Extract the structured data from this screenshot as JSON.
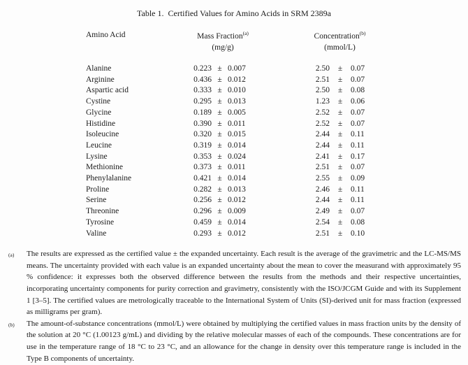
{
  "title": "Table 1.  Certified Values for Amino Acids in SRM 2389a",
  "table": {
    "header": {
      "amino_acid": "Amino Acid",
      "mass_fraction_label": "Mass Fraction",
      "mass_fraction_sup": "(a)",
      "mass_fraction_unit": "(mg/g)",
      "concentration_label": "Concentration",
      "concentration_sup": "(b)",
      "concentration_unit": "(mmol/L)"
    },
    "pm_symbol": "±",
    "rows": [
      {
        "name": "Alanine",
        "mf": "0.223",
        "mf_unc": "0.007",
        "conc": "2.50",
        "conc_unc": "0.07"
      },
      {
        "name": "Arginine",
        "mf": "0.436",
        "mf_unc": "0.012",
        "conc": "2.51",
        "conc_unc": "0.07"
      },
      {
        "name": "Aspartic acid",
        "mf": "0.333",
        "mf_unc": "0.010",
        "conc": "2.50",
        "conc_unc": "0.08"
      },
      {
        "name": "Cystine",
        "mf": "0.295",
        "mf_unc": "0.013",
        "conc": "1.23",
        "conc_unc": "0.06"
      },
      {
        "name": "Glycine",
        "mf": "0.189",
        "mf_unc": "0.005",
        "conc": "2.52",
        "conc_unc": "0.07"
      },
      {
        "name": "Histidine",
        "mf": "0.390",
        "mf_unc": "0.011",
        "conc": "2.52",
        "conc_unc": "0.07"
      },
      {
        "name": "Isoleucine",
        "mf": "0.320",
        "mf_unc": "0.015",
        "conc": "2.44",
        "conc_unc": "0.11"
      },
      {
        "name": "Leucine",
        "mf": "0.319",
        "mf_unc": "0.014",
        "conc": "2.44",
        "conc_unc": "0.11"
      },
      {
        "name": "Lysine",
        "mf": "0.353",
        "mf_unc": "0.024",
        "conc": "2.41",
        "conc_unc": "0.17"
      },
      {
        "name": "Methionine",
        "mf": "0.373",
        "mf_unc": "0.011",
        "conc": "2.51",
        "conc_unc": "0.07"
      },
      {
        "name": "Phenylalanine",
        "mf": "0.421",
        "mf_unc": "0.014",
        "conc": "2.55",
        "conc_unc": "0.09"
      },
      {
        "name": "Proline",
        "mf": "0.282",
        "mf_unc": "0.013",
        "conc": "2.46",
        "conc_unc": "0.11"
      },
      {
        "name": "Serine",
        "mf": "0.256",
        "mf_unc": "0.012",
        "conc": "2.44",
        "conc_unc": "0.11"
      },
      {
        "name": "Threonine",
        "mf": "0.296",
        "mf_unc": "0.009",
        "conc": "2.49",
        "conc_unc": "0.07"
      },
      {
        "name": "Tyrosine",
        "mf": "0.459",
        "mf_unc": "0.014",
        "conc": "2.54",
        "conc_unc": "0.08"
      },
      {
        "name": "Valine",
        "mf": "0.293",
        "mf_unc": "0.012",
        "conc": "2.51",
        "conc_unc": "0.10"
      }
    ]
  },
  "footnotes": [
    {
      "marker": "(a)",
      "text": "The results are expressed as the certified value ± the expanded uncertainty.  Each result is the average of the gravimetric and the LC-MS/MS means.  The uncertainty provided with each value is an expanded uncertainty about the mean to cover the measurand with approximately 95 % confidence:  it expresses both the observed difference between the results from the methods and their respective uncertainties, incorporating uncertainty components for purity correction and gravimetry, consistently with the ISO/JCGM Guide and with its Supplement 1 [3–5].  The certified values are metrologically traceable to the International System of Units (SI)-derived unit for mass fraction (expressed as milligrams per gram).",
      "marker_note": ""
    },
    {
      "marker": "(b)",
      "text": "The amount-of-substance concentrations (mmol/L) were obtained by multiplying the certified values in mass fraction units by the density of the solution at 20 °C (1.00123 g/mL) and dividing by the relative molecular masses of each of the compounds.  These concentrations are for use in the temperature range of 18 °C to 23 °C, and an allowance for the change in density over this temperature range is included in the Type B components of uncertainty.",
      "marker_note": ""
    }
  ]
}
